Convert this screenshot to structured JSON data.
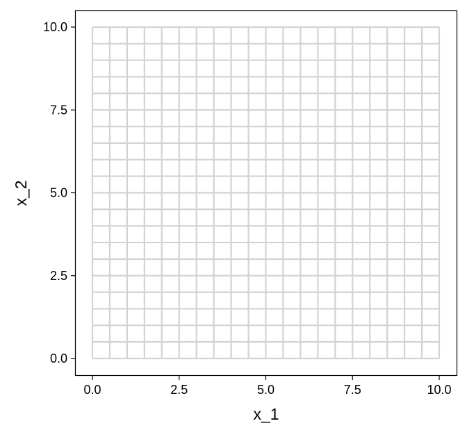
{
  "chart_data": {
    "type": "line",
    "description_of_marks": "grid of straight lines",
    "vertical_lines_x": [
      0,
      0.5,
      1,
      1.5,
      2,
      2.5,
      3,
      3.5,
      4,
      4.5,
      5,
      5.5,
      6,
      6.5,
      7,
      7.5,
      8,
      8.5,
      9,
      9.5,
      10
    ],
    "horizontal_lines_y": [
      0,
      0.5,
      1,
      1.5,
      2,
      2.5,
      3,
      3.5,
      4,
      4.5,
      5,
      5.5,
      6,
      6.5,
      7,
      7.5,
      8,
      8.5,
      9,
      9.5,
      10
    ],
    "line_range": [
      0,
      10
    ],
    "line_color": "#d3d3d3",
    "xlabel": "x_1",
    "ylabel": "x_2",
    "xlim": [
      -0.5,
      10.5
    ],
    "ylim": [
      -0.5,
      10.5
    ],
    "xticks": [
      "0.0",
      "2.5",
      "5.0",
      "7.5",
      "10.0"
    ],
    "yticks": [
      "0.0",
      "2.5",
      "5.0",
      "7.5",
      "10.0"
    ],
    "grid": false
  }
}
